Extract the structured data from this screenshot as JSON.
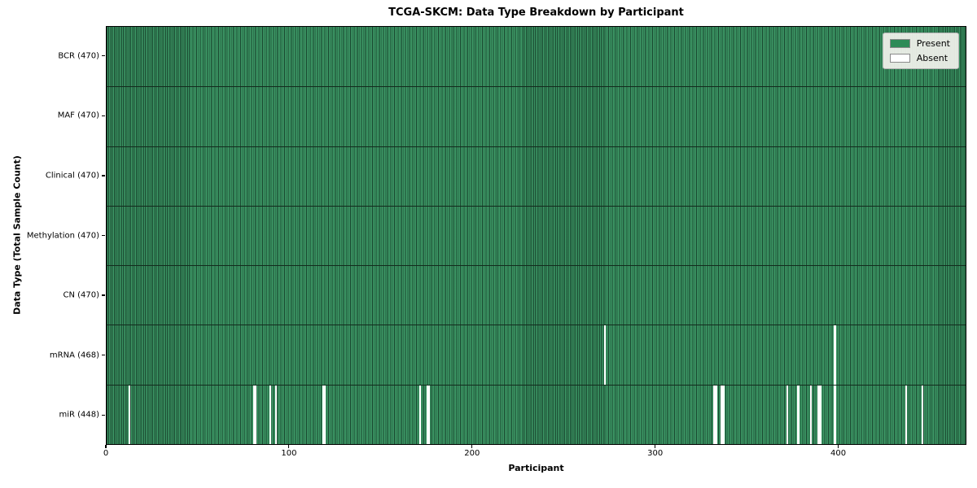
{
  "chart_data": {
    "type": "heatmap",
    "title": "TCGA-SKCM: Data Type Breakdown by Participant",
    "xlabel": "Participant",
    "ylabel": "Data Type (Total Sample Count)",
    "xlim": [
      0,
      470
    ],
    "x_ticks": [
      0,
      100,
      200,
      300,
      400
    ],
    "n_participants": 470,
    "n_rows": 7,
    "grid": false,
    "legend_position": "upper right",
    "legend": [
      {
        "label": "Present",
        "color": "#2e8b57"
      },
      {
        "label": "Absent",
        "color": "#ffffff"
      }
    ],
    "colors": {
      "present": "#2e8b57",
      "absent": "#ffffff",
      "cell_edge": "#0a2216",
      "row_separator": "#132b1d",
      "spine": "#000000",
      "legend_bg": "#f3f3ee",
      "legend_border": "#b3b3b3"
    },
    "rows": [
      {
        "label": "BCR (470)",
        "data_type": "BCR",
        "present_count": 470,
        "absent_participants": []
      },
      {
        "label": "MAF (470)",
        "data_type": "MAF",
        "present_count": 470,
        "absent_participants": []
      },
      {
        "label": "Clinical (470)",
        "data_type": "Clinical",
        "present_count": 470,
        "absent_participants": []
      },
      {
        "label": "Methylation (470)",
        "data_type": "Methylation",
        "present_count": 470,
        "absent_participants": []
      },
      {
        "label": "CN (470)",
        "data_type": "CN",
        "present_count": 470,
        "absent_participants": []
      },
      {
        "label": "mRNA (468)",
        "data_type": "mRNA",
        "present_count": 468,
        "absent_participants": [
          272,
          398
        ]
      },
      {
        "label": "miR (448)",
        "data_type": "miR",
        "present_count": 448,
        "absent_participants": [
          12,
          80,
          81,
          89,
          92,
          118,
          119,
          171,
          175,
          176,
          332,
          333,
          336,
          337,
          372,
          378,
          385,
          389,
          390,
          398,
          437,
          446
        ]
      }
    ]
  }
}
